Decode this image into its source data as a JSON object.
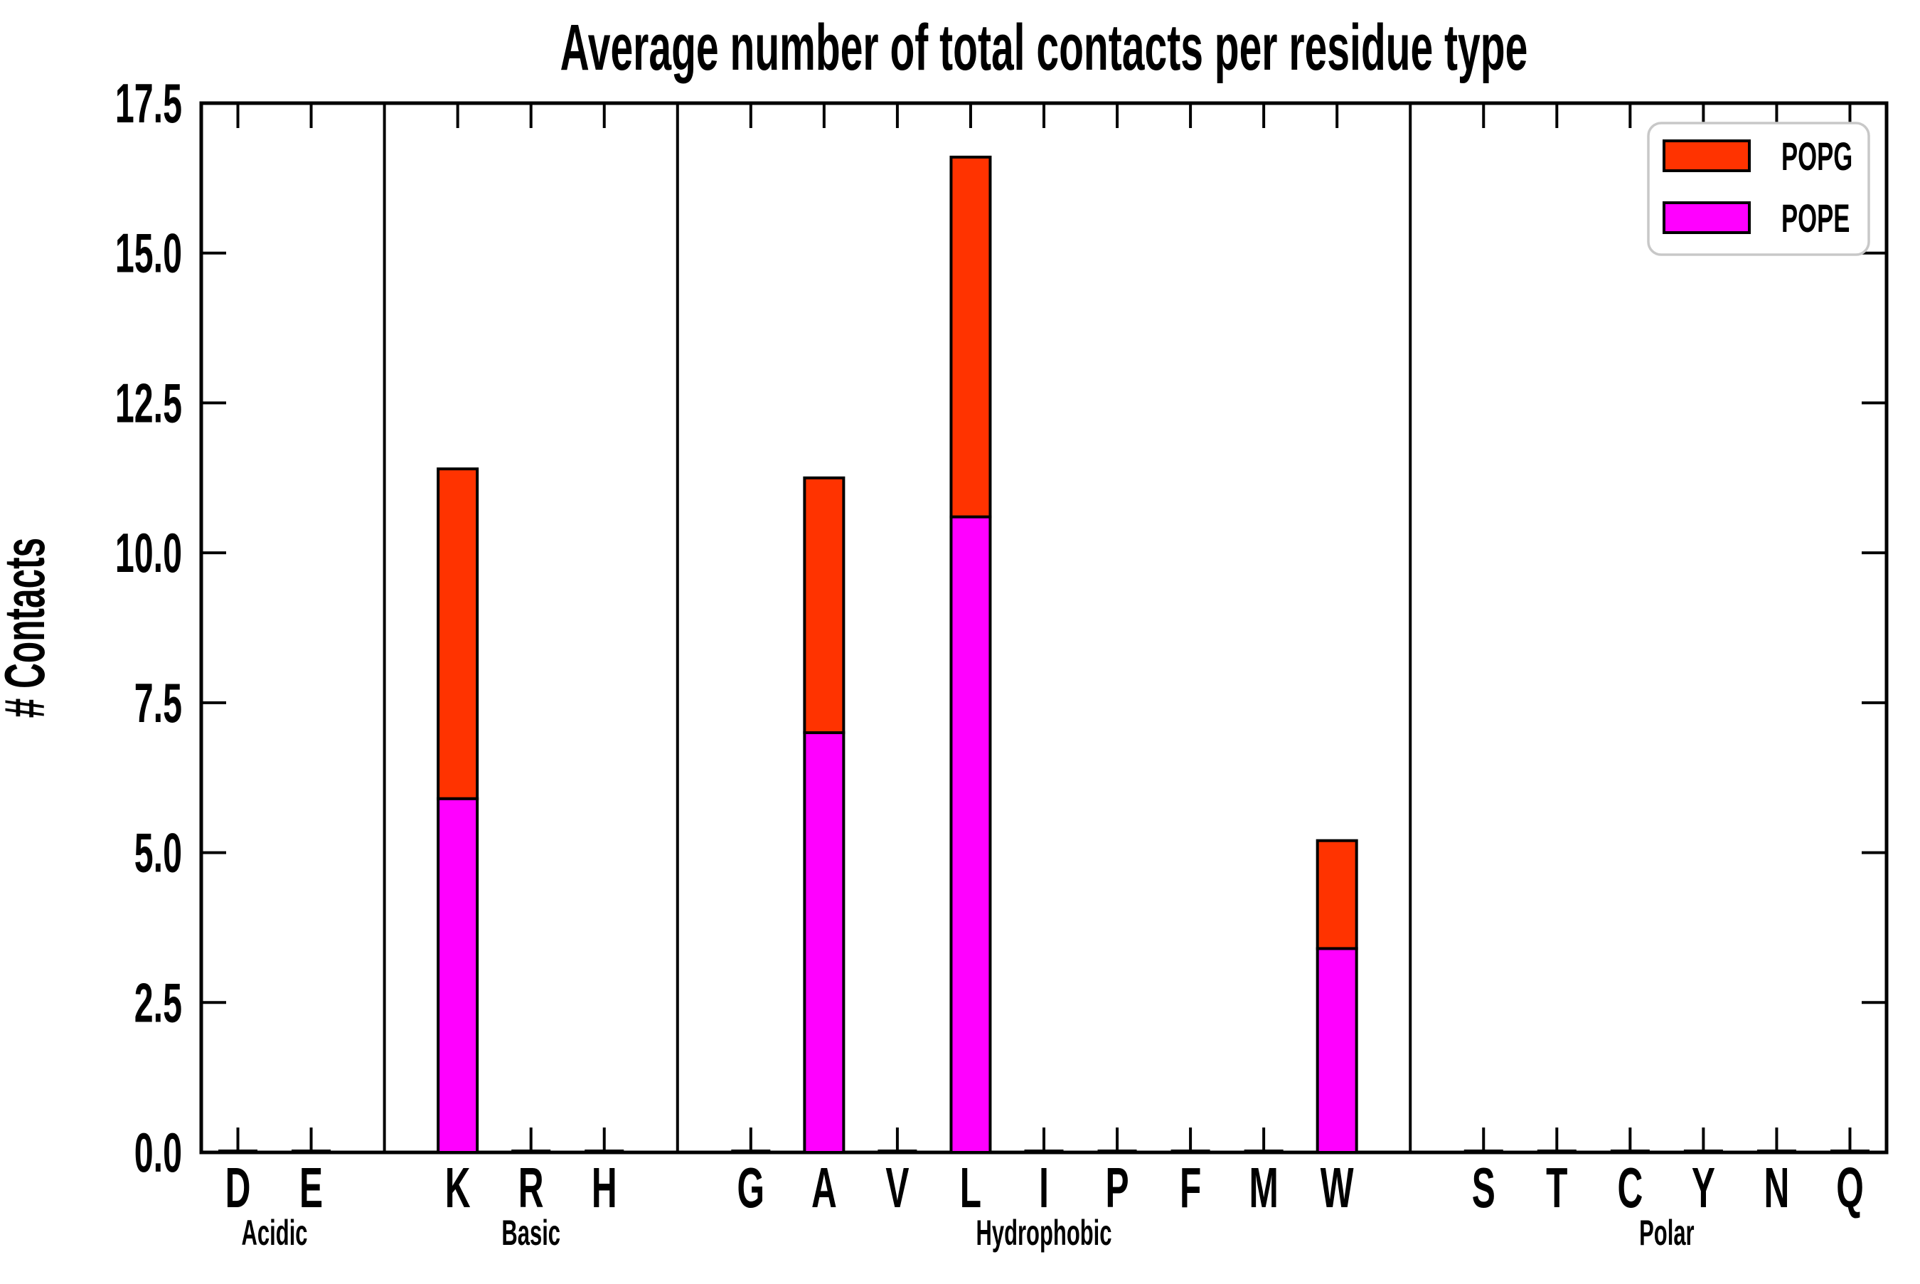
{
  "figure": {
    "title": "Average number of total contacts per residue type",
    "ylabel": "# Contacts",
    "legend": {
      "items": [
        {
          "label": "POPG",
          "color": "#ff3300"
        },
        {
          "label": "POPE",
          "color": "#ff00ff"
        }
      ]
    }
  },
  "chart_data": {
    "type": "bar",
    "stacked": true,
    "title": "Average number of total contacts per residue type",
    "xlabel": "",
    "ylabel": "# Contacts",
    "ylim": [
      0,
      17.5
    ],
    "yticks": [
      0.0,
      2.5,
      5.0,
      7.5,
      10.0,
      12.5,
      15.0,
      17.5
    ],
    "ytick_labels": [
      "0.0",
      "2.5",
      "5.0",
      "7.5",
      "10.0",
      "12.5",
      "15.0",
      "17.5"
    ],
    "grid": false,
    "legend_position": "upper right",
    "categories": [
      "D",
      "E",
      "K",
      "R",
      "H",
      "G",
      "A",
      "V",
      "L",
      "I",
      "P",
      "F",
      "M",
      "W",
      "S",
      "T",
      "C",
      "Y",
      "N",
      "Q"
    ],
    "groups": [
      {
        "label": "Acidic",
        "categories": [
          "D",
          "E"
        ]
      },
      {
        "label": "Basic",
        "categories": [
          "K",
          "R",
          "H"
        ]
      },
      {
        "label": "Hydrophobic",
        "categories": [
          "G",
          "A",
          "V",
          "L",
          "I",
          "P",
          "F",
          "M",
          "W"
        ]
      },
      {
        "label": "Polar",
        "categories": [
          "S",
          "T",
          "C",
          "Y",
          "N",
          "Q"
        ]
      }
    ],
    "series": [
      {
        "name": "POPE",
        "color": "#ff00ff",
        "values": [
          0,
          0,
          5.9,
          0,
          0,
          0,
          7.0,
          0,
          10.6,
          0,
          0,
          0,
          0,
          3.4,
          0,
          0,
          0,
          0,
          0,
          0
        ]
      },
      {
        "name": "POPG",
        "color": "#ff3300",
        "values": [
          0,
          0,
          5.5,
          0,
          0,
          0,
          4.25,
          0,
          6.0,
          0,
          0,
          0,
          0,
          1.8,
          0,
          0,
          0,
          0,
          0,
          0
        ]
      }
    ],
    "totals": {
      "K": 11.4,
      "A": 11.25,
      "L": 16.6,
      "W": 5.2
    }
  }
}
